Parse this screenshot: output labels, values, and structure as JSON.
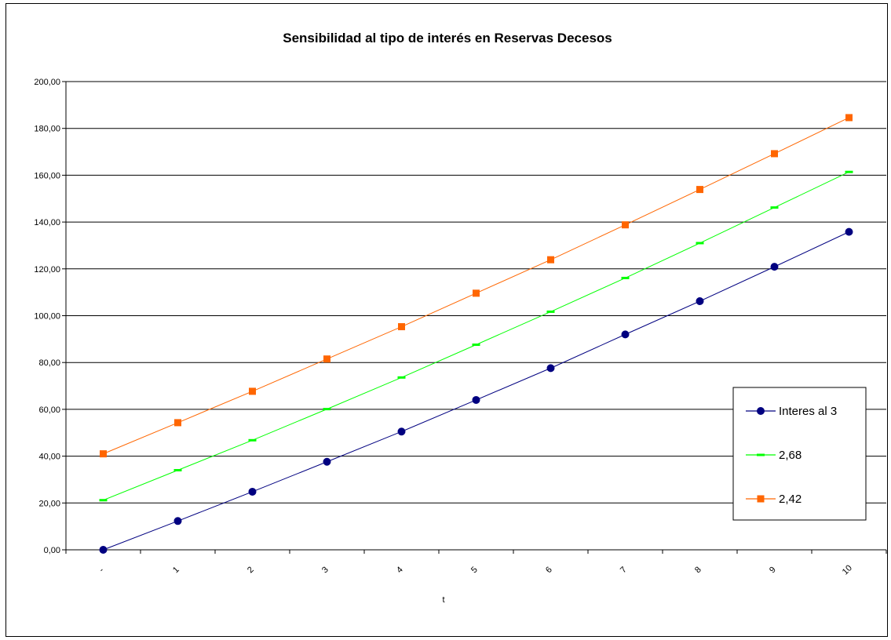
{
  "chart_data": {
    "type": "line",
    "title": "Sensibilidad al tipo de interés en Reservas Decesos",
    "xlabel": "t",
    "ylabel": "",
    "categories": [
      "-",
      "1",
      "2",
      "3",
      "4",
      "5",
      "6",
      "7",
      "8",
      "9",
      "10"
    ],
    "ylim": [
      0,
      200
    ],
    "y_ticks": [
      "0,00",
      "20,00",
      "40,00",
      "60,00",
      "80,00",
      "100,00",
      "120,00",
      "140,00",
      "160,00",
      "180,00",
      "200,00"
    ],
    "grid": "horizontal",
    "legend_position": "right",
    "series": [
      {
        "name": "Interes al 3",
        "color": "#000080",
        "marker": "circle",
        "values": [
          0.0,
          12.3,
          24.8,
          37.6,
          50.5,
          64.0,
          77.6,
          92.0,
          106.2,
          120.9,
          135.8
        ]
      },
      {
        "name": "2,68",
        "color": "#00ff00",
        "marker": "dash",
        "values": [
          21.2,
          34.0,
          46.8,
          60.1,
          73.6,
          87.6,
          101.7,
          116.1,
          131.0,
          146.2,
          161.4
        ]
      },
      {
        "name": "2,42",
        "color": "#ff6600",
        "marker": "square",
        "values": [
          41.0,
          54.3,
          67.7,
          81.5,
          95.3,
          109.6,
          123.9,
          138.8,
          153.9,
          169.2,
          184.6
        ]
      }
    ]
  }
}
